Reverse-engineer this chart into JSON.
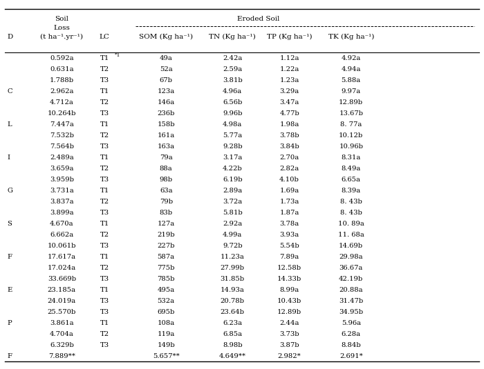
{
  "rows": [
    [
      "",
      "0.592a",
      "T1",
      "*1",
      "49a",
      "2.42a",
      "1.12a",
      "4.92a"
    ],
    [
      "",
      "0.631a",
      "T2",
      "",
      "52a",
      "2.59a",
      "1.22a",
      "4.94a"
    ],
    [
      "",
      "1.788b",
      "T3",
      "",
      "67b",
      "3.81b",
      "1.23a",
      "5.88a"
    ],
    [
      "C",
      "2.962a",
      "T1",
      "",
      "123a",
      "4.96a",
      "3.29a",
      "9.97a"
    ],
    [
      "",
      "4.712a",
      "T2",
      "",
      "146a",
      "6.56b",
      "3.47a",
      "12.89b"
    ],
    [
      "",
      "10.264b",
      "T3",
      "",
      "236b",
      "9.96b",
      "4.77b",
      "13.67b"
    ],
    [
      "L",
      "7.447a",
      "T1",
      "",
      "158b",
      "4.98a",
      "1.98a",
      "8. 77a"
    ],
    [
      "",
      "7.532b",
      "T2",
      "",
      "161a",
      "5.77a",
      "3.78b",
      "10.12b"
    ],
    [
      "",
      "7.564b",
      "T3",
      "",
      "163a",
      "9.28b",
      "3.84b",
      "10.96b"
    ],
    [
      "I",
      "2.489a",
      "T1",
      "",
      "79a",
      "3.17a",
      "2.70a",
      "8.31a"
    ],
    [
      "",
      "3.659a",
      "T2",
      "",
      "88a",
      "4.22b",
      "2.82a",
      "8.49a"
    ],
    [
      "",
      "3.959b",
      "T3",
      "",
      "98b",
      "6.19b",
      "4.10b",
      "6.65a"
    ],
    [
      "G",
      "3.731a",
      "T1",
      "",
      "63a",
      "2.89a",
      "1.69a",
      "8.39a"
    ],
    [
      "",
      "3.837a",
      "T2",
      "",
      "79b",
      "3.72a",
      "1.73a",
      "8. 43b"
    ],
    [
      "",
      "3.899a",
      "T3",
      "",
      "83b",
      "5.81b",
      "1.87a",
      "8. 43b"
    ],
    [
      "S",
      "4.670a",
      "T1",
      "",
      "127a",
      "2.92a",
      "3.78a",
      "10. 89a"
    ],
    [
      "",
      "6.662a",
      "T2",
      "",
      "219b",
      "4.99a",
      "3.93a",
      "11. 68a"
    ],
    [
      "",
      "10.061b",
      "T3",
      "",
      "227b",
      "9.72b",
      "5.54b",
      "14.69b"
    ],
    [
      "F",
      "17.617a",
      "T1",
      "",
      "587a",
      "11.23a",
      "7.89a",
      "29.98a"
    ],
    [
      "",
      "17.024a",
      "T2",
      "",
      "775b",
      "27.99b",
      "12.58b",
      "36.67a"
    ],
    [
      "",
      "33.669b",
      "T3",
      "",
      "785b",
      "31.85b",
      "14.33b",
      "42.19b"
    ],
    [
      "E",
      "23.185a",
      "T1",
      "",
      "495a",
      "14.93a",
      "8.99a",
      "20.88a"
    ],
    [
      "",
      "24.019a",
      "T3",
      "",
      "532a",
      "20.78b",
      "10.43b",
      "31.47b"
    ],
    [
      "",
      "25.570b",
      "T3",
      "",
      "695b",
      "23.64b",
      "12.89b",
      "34.95b"
    ],
    [
      "P",
      "3.861a",
      "T1",
      "",
      "108a",
      "6.23a",
      "2.44a",
      "5.96a"
    ],
    [
      "",
      "4.704a",
      "T2",
      "",
      "119a",
      "6.85a",
      "3.73b",
      "6.28a"
    ],
    [
      "",
      "6.329b",
      "T3",
      "",
      "149b",
      "8.98b",
      "3.87b",
      "8.84b"
    ],
    [
      "F",
      "7.889**",
      "",
      "",
      "5.657**",
      "4.649**",
      "2.982*",
      "2.691*"
    ]
  ],
  "bg_color": "#ffffff",
  "text_color": "#000000",
  "font_size": 7.2,
  "header_font_size": 7.5
}
